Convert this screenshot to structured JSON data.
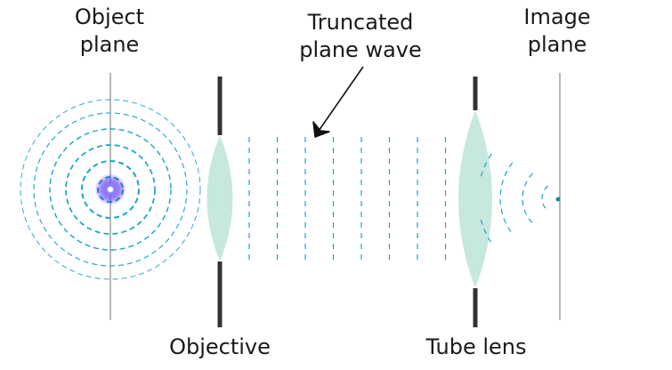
{
  "labels": {
    "object_plane": [
      "Object",
      "plane"
    ],
    "truncated_wave": [
      "Truncated",
      "plane wave"
    ],
    "image_plane": [
      "Image",
      "plane"
    ],
    "objective": "Objective",
    "tube_lens": "Tube lens"
  },
  "colors": {
    "wave": "#1aa3c8",
    "lens": "#c7e8df",
    "stop": "#333333",
    "plane": "#888888",
    "source_core": "#ffffff",
    "source_glow": "#5a3cf0"
  }
}
